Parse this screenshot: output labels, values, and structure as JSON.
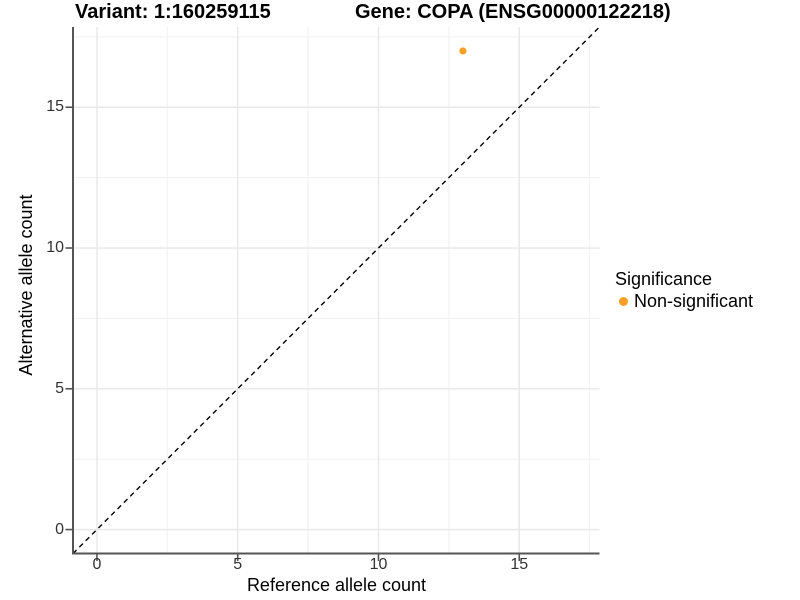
{
  "header": {
    "variant_title": "Variant: 1:160259115",
    "gene_title": "Gene: COPA (ENSG00000122218)"
  },
  "chart_data": {
    "type": "scatter",
    "xlabel": "Reference allele count",
    "ylabel": "Alternative allele count",
    "xlim": [
      -0.85,
      17.85
    ],
    "ylim": [
      -0.85,
      17.85
    ],
    "x_ticks": [
      0,
      5,
      10,
      15
    ],
    "y_ticks": [
      0,
      5,
      10,
      15
    ],
    "x_minor_gridlines": [
      2.5,
      7.5,
      12.5,
      17.5
    ],
    "y_minor_gridlines": [
      2.5,
      7.5,
      12.5,
      17.5
    ],
    "grid": true,
    "series": [
      {
        "name": "Non-significant",
        "color": "#FB9E26",
        "point_radius": 3.6,
        "points": [
          {
            "x": 13,
            "y": 17
          }
        ]
      }
    ],
    "reference_line": {
      "type": "identity",
      "style": "dashed",
      "color": "#000000",
      "from": -0.85,
      "to": 17.85
    },
    "legend": {
      "title": "Significance",
      "position": "right",
      "items": [
        {
          "label": "Non-significant",
          "color": "#FB9E26"
        }
      ]
    }
  },
  "colors": {
    "background": "#ffffff",
    "grid_major": "#e8e8e8",
    "grid_minor": "#f3f3f3",
    "axis": "#545454",
    "tick_text": "#333333",
    "text": "#000000"
  }
}
